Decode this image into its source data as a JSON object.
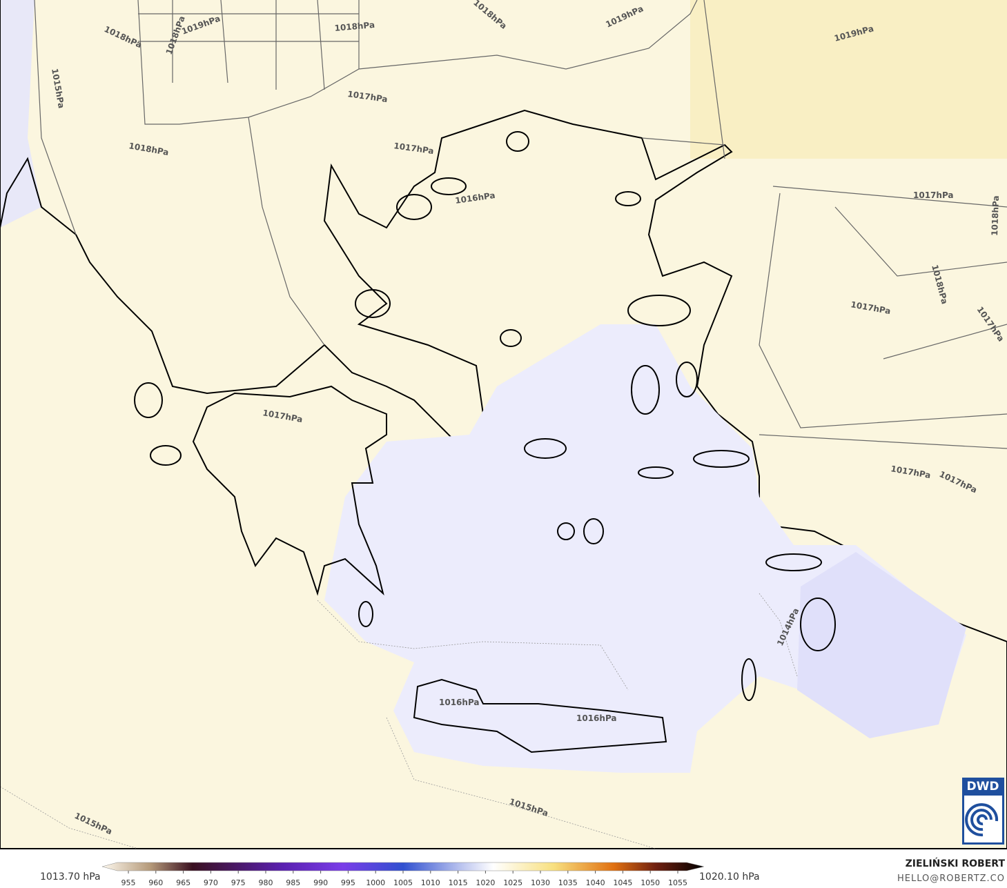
{
  "isobar_labels": [
    "1018hPa",
    "1019hPa",
    "1018hPa",
    "1018hPa",
    "1018hPa",
    "1019hPa",
    "1019hPa",
    "1015hPa",
    "1017hPa",
    "1018hPa",
    "1017hPa",
    "1016hPa",
    "1017hPa",
    "1018hPa",
    "1018hPa",
    "1017hPa",
    "1017hPa",
    "1017hPa",
    "1017hPa",
    "1017hPa",
    "1014hPa",
    "1016hPa",
    "1016hPa",
    "1015hPa",
    "1015hPa"
  ],
  "logo": "DWD",
  "colorbar": {
    "min_label": "1013.70 hPa",
    "max_label": "1020.10 hPa",
    "ticks": [
      955,
      960,
      965,
      970,
      975,
      980,
      985,
      990,
      995,
      1000,
      1005,
      1010,
      1015,
      1020,
      1025,
      1030,
      1035,
      1040,
      1045,
      1050,
      1055
    ]
  },
  "credit": {
    "author": "ZIELIŃSKI ROBERT",
    "email": "HELLO@ROBERTZ.CO"
  }
}
